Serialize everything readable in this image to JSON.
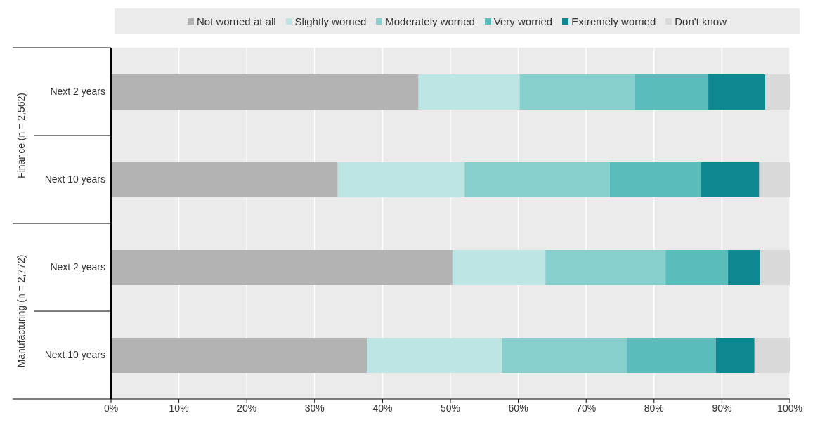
{
  "chart_data": {
    "type": "bar",
    "orientation": "horizontal",
    "stacked": true,
    "categories": [
      "Next 2 years",
      "Next 10 years",
      "Next 2 years",
      "Next 10 years"
    ],
    "series": [
      {
        "name": "Not worried at all",
        "color": "#b3b3b3",
        "values": [
          45.3,
          33.4,
          50.3,
          37.7
        ]
      },
      {
        "name": "Slightly worried",
        "color": "#bde5e4",
        "values": [
          14.9,
          18.7,
          13.7,
          19.9
        ]
      },
      {
        "name": "Moderately worried",
        "color": "#86cfcd",
        "values": [
          17.0,
          21.4,
          17.7,
          18.4
        ]
      },
      {
        "name": "Very worried",
        "color": "#5bbcbc",
        "values": [
          10.8,
          13.4,
          9.2,
          13.1
        ]
      },
      {
        "name": "Extremely worried",
        "color": "#0e8790",
        "values": [
          8.4,
          8.6,
          4.7,
          5.7
        ]
      },
      {
        "name": "Don't know",
        "color": "#d9d9d9",
        "values": [
          3.6,
          4.5,
          4.4,
          5.2
        ]
      }
    ],
    "xlim": [
      0,
      100
    ],
    "xticks": [
      {
        "value": 0,
        "label": "0%"
      },
      {
        "value": 10,
        "label": "10%"
      },
      {
        "value": 20,
        "label": "20%"
      },
      {
        "value": 30,
        "label": "30%"
      },
      {
        "value": 40,
        "label": "40%"
      },
      {
        "value": 50,
        "label": "50%"
      },
      {
        "value": 60,
        "label": "60%"
      },
      {
        "value": 70,
        "label": "70%"
      },
      {
        "value": 80,
        "label": "80%"
      },
      {
        "value": 90,
        "label": "90%"
      },
      {
        "value": 100,
        "label": "100%"
      }
    ],
    "annotations": [
      "Finance (n = 2,562)",
      "Manufacturing (n = 2,772)"
    ],
    "grid": "x",
    "legend": "top"
  }
}
